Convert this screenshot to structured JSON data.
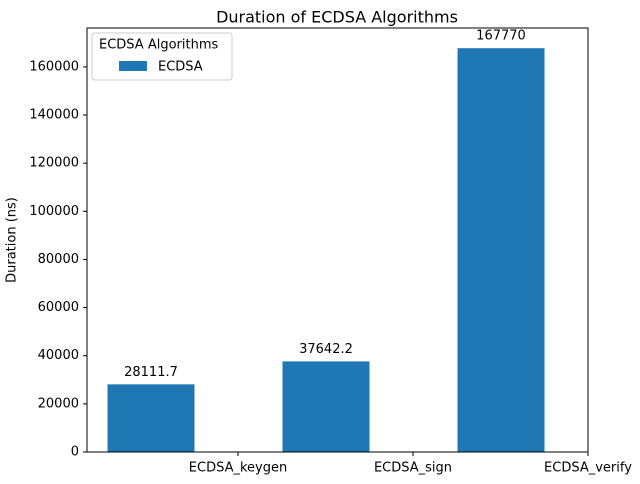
{
  "chart_data": {
    "type": "bar",
    "title": "Duration of ECDSA Algorithms",
    "xlabel": "",
    "ylabel": "Duration (ns)",
    "categories": [
      "ECDSA_keygen",
      "ECDSA_sign",
      "ECDSA_verify"
    ],
    "series": [
      {
        "name": "ECDSA",
        "values": [
          28111.7,
          37642.2,
          167770
        ],
        "value_labels": [
          "28111.7",
          "37642.2",
          "167770"
        ],
        "color": "#1f77b4"
      }
    ],
    "ylim": [
      0,
      176158.5
    ],
    "yticks": [
      0,
      20000,
      40000,
      60000,
      80000,
      100000,
      120000,
      140000,
      160000
    ],
    "ytick_labels": [
      "0",
      "20000",
      "40000",
      "60000",
      "80000",
      "100000",
      "120000",
      "140000",
      "160000"
    ],
    "grid": false,
    "legend": {
      "title": "ECDSA Algorithms",
      "placement": "top-left"
    }
  }
}
